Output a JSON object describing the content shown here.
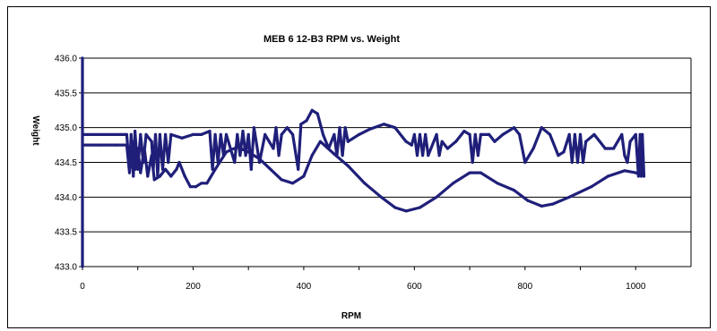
{
  "chart_data": {
    "type": "line",
    "title": "MEB 6 12-B3 RPM vs. Weight",
    "xlabel": "RPM",
    "ylabel": "Weight",
    "xlim": [
      0,
      1100
    ],
    "ylim": [
      433.0,
      436.0
    ],
    "x_ticks": [
      "0",
      "200",
      "400",
      "600",
      "800",
      "1000"
    ],
    "y_ticks": [
      "433.0",
      "433.5",
      "434.0",
      "434.5",
      "435.0",
      "435.5",
      "436.0"
    ],
    "grid": "horizontal",
    "legend": "none",
    "line_color": "#1f1f7a",
    "series": [
      {
        "values": [
          [
            0,
            433.0
          ],
          [
            0,
            436.0
          ],
          [
            0,
            434.9
          ],
          [
            70,
            434.9
          ],
          [
            80,
            434.9
          ],
          [
            85,
            434.4
          ],
          [
            88,
            434.9
          ],
          [
            92,
            434.3
          ],
          [
            95,
            434.95
          ],
          [
            100,
            434.4
          ],
          [
            105,
            434.9
          ],
          [
            110,
            434.5
          ],
          [
            115,
            434.9
          ],
          [
            125,
            434.8
          ],
          [
            128,
            434.4
          ],
          [
            132,
            434.9
          ],
          [
            136,
            434.3
          ],
          [
            140,
            434.9
          ],
          [
            145,
            434.4
          ],
          [
            150,
            434.9
          ],
          [
            155,
            434.5
          ],
          [
            160,
            434.9
          ],
          [
            180,
            434.85
          ],
          [
            200,
            434.9
          ],
          [
            215,
            434.9
          ],
          [
            230,
            434.95
          ],
          [
            235,
            434.4
          ],
          [
            240,
            434.9
          ],
          [
            245,
            434.5
          ],
          [
            250,
            434.9
          ],
          [
            255,
            434.6
          ],
          [
            260,
            434.9
          ],
          [
            275,
            434.5
          ],
          [
            280,
            434.9
          ],
          [
            285,
            434.6
          ],
          [
            290,
            434.95
          ],
          [
            295,
            434.6
          ],
          [
            300,
            434.9
          ],
          [
            305,
            434.4
          ],
          [
            310,
            435.0
          ],
          [
            320,
            434.5
          ],
          [
            330,
            434.9
          ],
          [
            345,
            434.7
          ],
          [
            350,
            435.0
          ],
          [
            355,
            434.6
          ],
          [
            360,
            434.9
          ],
          [
            370,
            435.0
          ],
          [
            380,
            434.9
          ],
          [
            390,
            434.4
          ],
          [
            395,
            435.05
          ],
          [
            405,
            435.1
          ],
          [
            415,
            435.25
          ],
          [
            425,
            435.2
          ],
          [
            435,
            434.9
          ],
          [
            445,
            434.7
          ],
          [
            455,
            434.9
          ],
          [
            460,
            434.6
          ],
          [
            465,
            435.0
          ],
          [
            470,
            434.6
          ],
          [
            475,
            435.0
          ],
          [
            480,
            434.8
          ],
          [
            500,
            434.9
          ],
          [
            520,
            434.98
          ],
          [
            545,
            435.05
          ],
          [
            565,
            435.0
          ],
          [
            585,
            434.8
          ],
          [
            595,
            434.75
          ],
          [
            600,
            434.9
          ],
          [
            605,
            434.6
          ],
          [
            610,
            434.9
          ],
          [
            615,
            434.6
          ],
          [
            620,
            434.9
          ],
          [
            625,
            434.6
          ],
          [
            640,
            434.9
          ],
          [
            645,
            434.6
          ],
          [
            650,
            434.8
          ],
          [
            660,
            434.7
          ],
          [
            675,
            434.8
          ],
          [
            690,
            434.95
          ],
          [
            700,
            434.9
          ],
          [
            705,
            434.5
          ],
          [
            710,
            434.9
          ],
          [
            715,
            434.6
          ],
          [
            720,
            434.9
          ],
          [
            735,
            434.9
          ],
          [
            745,
            434.8
          ],
          [
            760,
            434.9
          ],
          [
            780,
            435.0
          ],
          [
            790,
            434.9
          ],
          [
            800,
            434.5
          ],
          [
            815,
            434.7
          ],
          [
            830,
            435.0
          ],
          [
            845,
            434.9
          ],
          [
            860,
            434.6
          ],
          [
            870,
            434.65
          ],
          [
            880,
            434.9
          ],
          [
            885,
            434.5
          ],
          [
            890,
            434.9
          ],
          [
            895,
            434.5
          ],
          [
            900,
            434.9
          ],
          [
            905,
            434.5
          ],
          [
            910,
            434.8
          ],
          [
            925,
            434.9
          ],
          [
            945,
            434.7
          ],
          [
            960,
            434.7
          ],
          [
            975,
            434.9
          ],
          [
            980,
            434.6
          ],
          [
            985,
            434.5
          ],
          [
            990,
            434.8
          ],
          [
            1000,
            434.9
          ],
          [
            1005,
            434.3
          ],
          [
            1008,
            434.9
          ],
          [
            1010,
            434.3
          ],
          [
            1012,
            434.9
          ],
          [
            1015,
            434.3
          ],
          [
            1000,
            434.35
          ],
          [
            980,
            434.38
          ],
          [
            950,
            434.3
          ],
          [
            920,
            434.15
          ],
          [
            880,
            434.0
          ],
          [
            850,
            433.9
          ],
          [
            830,
            433.87
          ],
          [
            805,
            433.95
          ],
          [
            780,
            434.1
          ],
          [
            750,
            434.2
          ],
          [
            720,
            434.35
          ],
          [
            700,
            434.35
          ],
          [
            670,
            434.2
          ],
          [
            640,
            434.0
          ],
          [
            610,
            433.85
          ],
          [
            585,
            433.8
          ],
          [
            565,
            433.85
          ],
          [
            540,
            434.0
          ],
          [
            510,
            434.2
          ],
          [
            480,
            434.45
          ],
          [
            455,
            434.62
          ],
          [
            430,
            434.8
          ],
          [
            415,
            434.6
          ],
          [
            400,
            434.3
          ],
          [
            380,
            434.2
          ],
          [
            360,
            434.25
          ],
          [
            340,
            434.4
          ],
          [
            320,
            434.55
          ],
          [
            300,
            434.65
          ],
          [
            280,
            434.72
          ],
          [
            260,
            434.65
          ],
          [
            240,
            434.4
          ],
          [
            225,
            434.2
          ],
          [
            215,
            434.2
          ],
          [
            205,
            434.15
          ],
          [
            195,
            434.15
          ],
          [
            185,
            434.3
          ],
          [
            175,
            434.5
          ],
          [
            170,
            434.4
          ],
          [
            160,
            434.3
          ],
          [
            150,
            434.4
          ],
          [
            140,
            434.3
          ],
          [
            130,
            434.25
          ],
          [
            125,
            434.6
          ],
          [
            118,
            434.3
          ],
          [
            112,
            434.7
          ],
          [
            105,
            434.35
          ],
          [
            100,
            434.7
          ],
          [
            95,
            434.4
          ],
          [
            90,
            434.8
          ],
          [
            85,
            434.35
          ],
          [
            80,
            434.75
          ],
          [
            60,
            434.75
          ],
          [
            30,
            434.75
          ],
          [
            0,
            434.75
          ]
        ]
      }
    ]
  }
}
